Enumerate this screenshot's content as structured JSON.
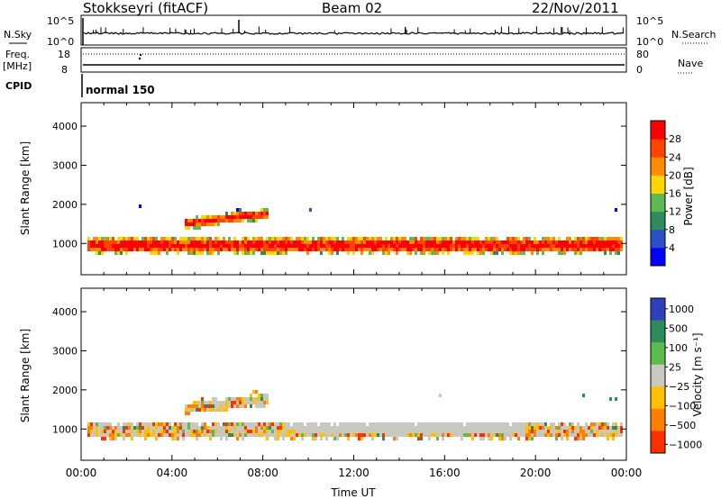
{
  "header": {
    "station": "Stokkseyri (fitACF)",
    "beam": "Beam 02",
    "date": "22/Nov/2011"
  },
  "top_panels": {
    "nsky_label": "N.Sky",
    "nsky_ticks": [
      "10^5",
      "10^0"
    ],
    "nsearch_label": "N.Search",
    "nsearch_ticks": [
      "10^5",
      "10^0"
    ],
    "freq_label_1": "Freq.",
    "freq_label_2": "[MHz]",
    "freq_ticks": [
      "18",
      "8"
    ],
    "nave_label": "Nave",
    "nave_ticks": [
      "80",
      "0"
    ],
    "cpid_label": "CPID",
    "cpid_value": "normal 150"
  },
  "chart_data": [
    {
      "type": "heatmap",
      "name": "power",
      "ylabel": "Slant Range [km]",
      "yticks": [
        1000,
        2000,
        3000,
        4000
      ],
      "ylim": [
        200,
        4600
      ],
      "xlim_hours": [
        0,
        24
      ],
      "colorbar_label": "Power [dB]",
      "colorbar_ticks": [
        "28",
        "24",
        "20",
        "16",
        "12",
        "8",
        "4"
      ],
      "colorbar_colors": [
        "#0000ff",
        "#2850c8",
        "#2e8c5a",
        "#5cba4e",
        "#ffd700",
        "#ff8c00",
        "#ff4500",
        "#ff0000"
      ]
    },
    {
      "type": "heatmap",
      "name": "velocity",
      "ylabel": "Slant Range [km]",
      "yticks": [
        1000,
        2000,
        3000,
        4000
      ],
      "ylim": [
        200,
        4600
      ],
      "xlim_hours": [
        0,
        24
      ],
      "xlabel": "Time UT",
      "xticks": [
        "00:00",
        "04:00",
        "08:00",
        "12:00",
        "16:00",
        "20:00",
        "00:00"
      ],
      "colorbar_label": "Velocity [m s⁻¹]",
      "colorbar_ticks": [
        "1000",
        "500",
        "100",
        "25",
        "−25",
        "−100",
        "−500",
        "−1000"
      ],
      "colorbar_colors": [
        "#2e3fbf",
        "#2e8c5a",
        "#5cba4e",
        "#c8c8c0",
        "#ffc000",
        "#ff8000",
        "#ff3000"
      ]
    }
  ]
}
